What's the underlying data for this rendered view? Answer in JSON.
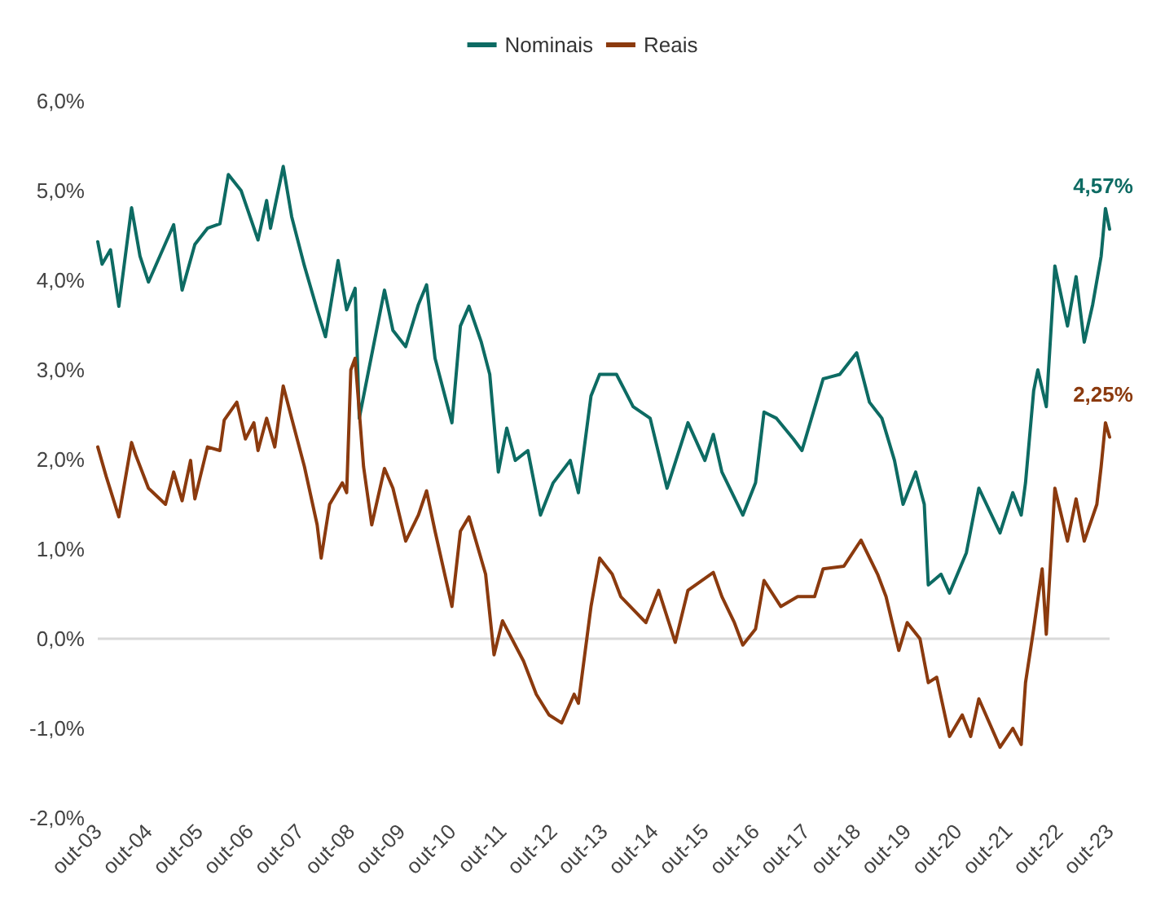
{
  "chart_data": {
    "type": "line",
    "legend": "top",
    "grid": false,
    "marker": "none",
    "line_style": "solid",
    "xlim": [
      "2003-10",
      "2023-10"
    ],
    "xticks": [
      {
        "value": "2003-10",
        "label": "out-03"
      },
      {
        "value": "2004-10",
        "label": "out-04"
      },
      {
        "value": "2005-10",
        "label": "out-05"
      },
      {
        "value": "2006-10",
        "label": "out-06"
      },
      {
        "value": "2007-10",
        "label": "out-07"
      },
      {
        "value": "2008-10",
        "label": "out-08"
      },
      {
        "value": "2009-10",
        "label": "out-09"
      },
      {
        "value": "2010-10",
        "label": "out-10"
      },
      {
        "value": "2011-10",
        "label": "out-11"
      },
      {
        "value": "2012-10",
        "label": "out-12"
      },
      {
        "value": "2013-10",
        "label": "out-13"
      },
      {
        "value": "2014-10",
        "label": "out-14"
      },
      {
        "value": "2015-10",
        "label": "out-15"
      },
      {
        "value": "2016-10",
        "label": "out-16"
      },
      {
        "value": "2017-10",
        "label": "out-17"
      },
      {
        "value": "2018-10",
        "label": "out-18"
      },
      {
        "value": "2019-10",
        "label": "out-19"
      },
      {
        "value": "2020-10",
        "label": "out-20"
      },
      {
        "value": "2021-10",
        "label": "out-21"
      },
      {
        "value": "2022-10",
        "label": "out-22"
      },
      {
        "value": "2023-10",
        "label": "out-23"
      }
    ],
    "ylim": [
      -2,
      6
    ],
    "yticks": [
      {
        "value": -2,
        "label": "-2,0%"
      },
      {
        "value": -1,
        "label": "-1,0%"
      },
      {
        "value": 0,
        "label": "0,0%"
      },
      {
        "value": 1,
        "label": "1,0%"
      },
      {
        "value": 2,
        "label": "2,0%"
      },
      {
        "value": 3,
        "label": "3,0%"
      },
      {
        "value": 4,
        "label": "4,0%"
      },
      {
        "value": 5,
        "label": "5,0%"
      },
      {
        "value": 6,
        "label": "6,0%"
      }
    ],
    "ref_lines": [
      {
        "axis": "y",
        "value": 0,
        "label": null,
        "color": "#d9d9d9"
      }
    ],
    "annotations": [
      {
        "text": "4,57%",
        "x": "2023-10",
        "y": 4.57
      },
      {
        "text": "2,25%",
        "x": "2023-10",
        "y": 2.25
      }
    ],
    "series": [
      {
        "name": "Nominais",
        "color": "#0d6b63",
        "x": [
          "2003-10",
          "2003-11",
          "2004-01",
          "2004-03",
          "2004-06",
          "2004-08",
          "2004-10",
          "2005-04",
          "2005-06",
          "2005-09",
          "2005-12",
          "2006-03",
          "2006-05",
          "2006-08",
          "2006-12",
          "2007-02",
          "2007-03",
          "2007-06",
          "2007-08",
          "2007-11",
          "2008-02",
          "2008-04",
          "2008-07",
          "2008-09",
          "2008-11",
          "2008-12",
          "2009-02",
          "2009-06",
          "2009-08",
          "2009-11",
          "2010-02",
          "2010-04",
          "2010-06",
          "2010-10",
          "2010-12",
          "2011-02",
          "2011-05",
          "2011-07",
          "2011-09",
          "2011-11",
          "2012-01",
          "2012-04",
          "2012-07",
          "2012-10",
          "2013-02",
          "2013-04",
          "2013-07",
          "2013-09",
          "2014-01",
          "2014-05",
          "2014-09",
          "2015-01",
          "2015-06",
          "2015-10",
          "2015-12",
          "2016-02",
          "2016-07",
          "2016-10",
          "2016-12",
          "2017-03",
          "2017-07",
          "2017-09",
          "2018-02",
          "2018-06",
          "2018-10",
          "2019-01",
          "2019-04",
          "2019-07",
          "2019-09",
          "2019-12",
          "2020-02",
          "2020-03",
          "2020-06",
          "2020-08",
          "2020-12",
          "2021-03",
          "2021-08",
          "2021-11",
          "2022-01",
          "2022-02",
          "2022-04",
          "2022-05",
          "2022-07",
          "2022-09",
          "2022-12",
          "2023-02",
          "2023-04",
          "2023-06",
          "2023-08",
          "2023-09",
          "2023-10"
        ],
        "values": [
          4.43,
          4.18,
          4.34,
          3.71,
          4.81,
          4.27,
          3.98,
          4.62,
          3.89,
          4.4,
          4.58,
          4.63,
          5.18,
          5.0,
          4.45,
          4.89,
          4.58,
          5.27,
          4.71,
          4.16,
          3.67,
          3.37,
          4.22,
          3.67,
          3.91,
          2.46,
          2.95,
          3.89,
          3.44,
          3.26,
          3.73,
          3.95,
          3.13,
          2.41,
          3.49,
          3.71,
          3.31,
          2.95,
          1.86,
          2.35,
          1.99,
          2.1,
          1.38,
          1.74,
          1.99,
          1.63,
          2.71,
          2.95,
          2.95,
          2.59,
          2.46,
          1.68,
          2.41,
          1.99,
          2.28,
          1.86,
          1.38,
          1.74,
          2.53,
          2.46,
          2.23,
          2.1,
          2.9,
          2.95,
          3.19,
          2.64,
          2.46,
          1.99,
          1.5,
          1.86,
          1.5,
          0.6,
          0.72,
          0.51,
          0.96,
          1.68,
          1.18,
          1.63,
          1.38,
          1.74,
          2.77,
          3.0,
          2.59,
          4.16,
          3.49,
          4.04,
          3.31,
          3.73,
          4.27,
          4.8,
          4.57
        ]
      },
      {
        "name": "Reais",
        "color": "#8b3a0e",
        "x": [
          "2003-10",
          "2003-12",
          "2004-03",
          "2004-06",
          "2004-07",
          "2004-10",
          "2005-02",
          "2005-04",
          "2005-06",
          "2005-08",
          "2005-09",
          "2005-12",
          "2006-03",
          "2006-04",
          "2006-07",
          "2006-09",
          "2006-11",
          "2006-12",
          "2007-02",
          "2007-04",
          "2007-06",
          "2007-08",
          "2007-11",
          "2008-02",
          "2008-03",
          "2008-05",
          "2008-08",
          "2008-09",
          "2008-10",
          "2008-11",
          "2009-01",
          "2009-03",
          "2009-06",
          "2009-08",
          "2009-11",
          "2010-02",
          "2010-04",
          "2010-06",
          "2010-10",
          "2010-12",
          "2011-02",
          "2011-06",
          "2011-08",
          "2011-10",
          "2012-03",
          "2012-06",
          "2012-09",
          "2012-12",
          "2013-03",
          "2013-04",
          "2013-07",
          "2013-09",
          "2013-12",
          "2014-02",
          "2014-08",
          "2014-11",
          "2015-03",
          "2015-06",
          "2015-12",
          "2016-02",
          "2016-05",
          "2016-07",
          "2016-10",
          "2016-12",
          "2017-04",
          "2017-08",
          "2017-12",
          "2018-02",
          "2018-07",
          "2018-11",
          "2019-03",
          "2019-05",
          "2019-08",
          "2019-10",
          "2020-01",
          "2020-03",
          "2020-05",
          "2020-08",
          "2020-11",
          "2021-01",
          "2021-03",
          "2021-08",
          "2021-11",
          "2022-01",
          "2022-02",
          "2022-04",
          "2022-06",
          "2022-07",
          "2022-09",
          "2022-12",
          "2023-02",
          "2023-04",
          "2023-07",
          "2023-08",
          "2023-09",
          "2023-10"
        ],
        "values": [
          2.14,
          1.81,
          1.36,
          2.19,
          2.05,
          1.68,
          1.5,
          1.86,
          1.54,
          1.99,
          1.56,
          2.14,
          2.1,
          2.44,
          2.64,
          2.23,
          2.41,
          2.1,
          2.46,
          2.14,
          2.82,
          2.46,
          1.92,
          1.27,
          0.9,
          1.5,
          1.74,
          1.63,
          3.0,
          3.13,
          1.92,
          1.27,
          1.9,
          1.68,
          1.09,
          1.38,
          1.65,
          1.2,
          0.36,
          1.2,
          1.36,
          0.72,
          -0.18,
          0.2,
          -0.25,
          -0.62,
          -0.85,
          -0.94,
          -0.62,
          -0.72,
          0.36,
          0.9,
          0.72,
          0.47,
          0.18,
          0.54,
          -0.04,
          0.54,
          0.74,
          0.47,
          0.18,
          -0.07,
          0.11,
          0.65,
          0.36,
          0.47,
          0.47,
          0.78,
          0.81,
          1.1,
          0.72,
          0.47,
          -0.13,
          0.18,
          0.0,
          -0.49,
          -0.43,
          -1.09,
          -0.85,
          -1.09,
          -0.67,
          -1.21,
          -1.0,
          -1.18,
          -0.49,
          0.11,
          0.78,
          0.05,
          1.68,
          1.09,
          1.56,
          1.09,
          1.5,
          1.92,
          2.41,
          2.25
        ]
      }
    ]
  }
}
